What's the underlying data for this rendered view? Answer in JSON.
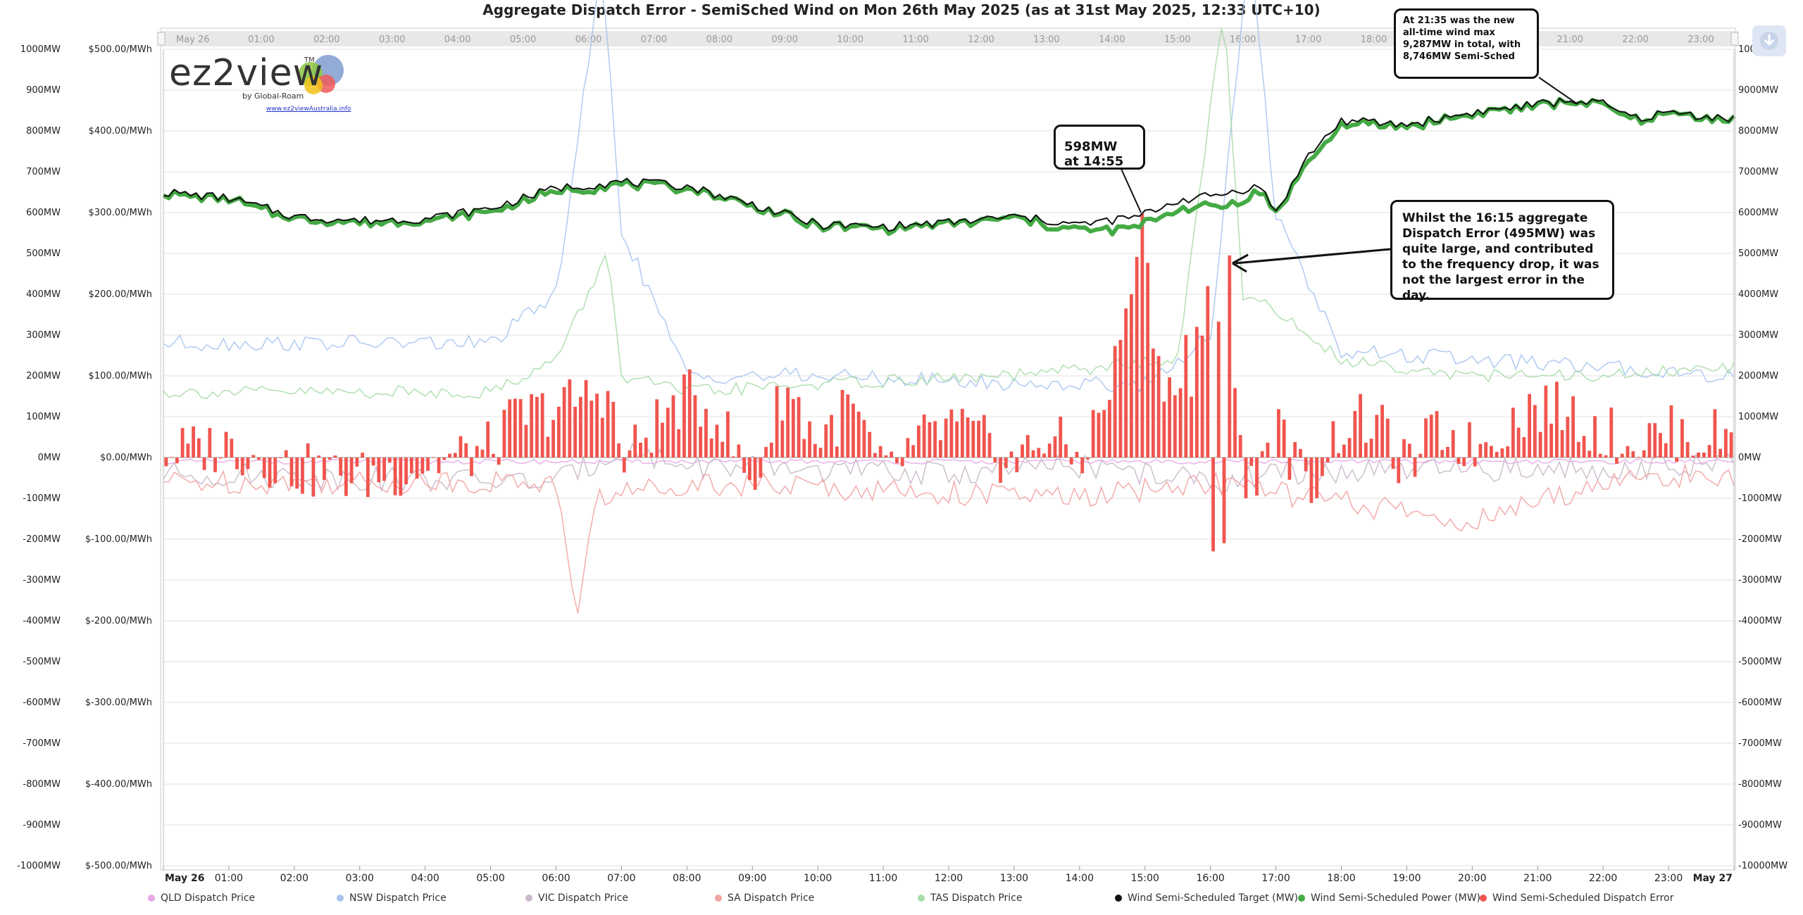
{
  "title": "Aggregate Dispatch Error - SemiSched Wind on Mon 26th May 2025 (as at 31st May 2025, 12:33 UTC+10)",
  "logo": {
    "text": "ez2view",
    "tm": "TM",
    "by": "by Global-Roam",
    "url": "www.ez2viewAustralia.info"
  },
  "annotations": {
    "max_wind": "At 21:35 was the new all-time wind max 9,287MW in total, with 8,746MW Semi-Sched",
    "peak_598": "598MW at 14:55",
    "note_1615": "Whilst the 16:15 aggregate Dispatch Error (495MW) was quite large, and contributed to the frequency drop, it was not the largest error in the day."
  },
  "colors": {
    "target": "#111111",
    "power": "#44aa44",
    "error": "#f0554e",
    "qld": "#e6a8e6",
    "nsw": "#a9c4ef",
    "vic": "#c9b8c9",
    "sa": "#f2a3a3",
    "tas": "#a9dba9"
  },
  "navigator_labels": [
    "May 26",
    "01:00",
    "02:00",
    "03:00",
    "04:00",
    "05:00",
    "06:00",
    "07:00",
    "08:00",
    "09:00",
    "10:00",
    "11:00",
    "12:00",
    "13:00",
    "14:00",
    "15:00",
    "16:00",
    "17:00",
    "18:00",
    "19:00",
    "20:00",
    "21:00",
    "22:00",
    "23:00"
  ],
  "chart_data": {
    "type": "line",
    "title": "Aggregate Dispatch Error - SemiSched Wind on Mon 26th May 2025 (as at 31st May 2025, 12:33 UTC+10)",
    "x_ticks": [
      "May 26",
      "01:00",
      "02:00",
      "03:00",
      "04:00",
      "05:00",
      "06:00",
      "07:00",
      "08:00",
      "09:00",
      "10:00",
      "11:00",
      "12:00",
      "13:00",
      "14:00",
      "15:00",
      "16:00",
      "17:00",
      "18:00",
      "19:00",
      "20:00",
      "21:00",
      "22:00",
      "23:00",
      "May 27"
    ],
    "y_left_mw": {
      "ticks": [
        "1000MW",
        "900MW",
        "800MW",
        "700MW",
        "600MW",
        "500MW",
        "400MW",
        "300MW",
        "200MW",
        "100MW",
        "0MW",
        "-100MW",
        "-200MW",
        "-300MW",
        "-400MW",
        "-500MW",
        "-600MW",
        "-700MW",
        "-800MW",
        "-900MW",
        "-1000MW"
      ],
      "range": [
        -1000,
        1000
      ]
    },
    "y_price": {
      "ticks": [
        "$500.00/MWh",
        "$400.00/MWh",
        "$300.00/MWh",
        "$200.00/MWh",
        "$100.00/MWh",
        "$0.00/MWh",
        "$-100.00/MWh",
        "$-200.00/MWh",
        "$-300.00/MWh",
        "$-400.00/MWh",
        "$-500.00/MWh"
      ],
      "range": [
        -500,
        500
      ]
    },
    "y_right_mw": {
      "ticks": [
        "10000MW",
        "9000MW",
        "8000MW",
        "7000MW",
        "6000MW",
        "5000MW",
        "4000MW",
        "3000MW",
        "2000MW",
        "1000MW",
        "0MW",
        "-1000MW",
        "-2000MW",
        "-3000MW",
        "-4000MW",
        "-5000MW",
        "-6000MW",
        "-7000MW",
        "-8000MW",
        "-9000MW",
        "-10000MW"
      ],
      "range": [
        -10000,
        10000
      ]
    },
    "interval_minutes": 5,
    "target_anchors": [
      [
        0,
        6500
      ],
      [
        1,
        6350
      ],
      [
        2,
        5900
      ],
      [
        3,
        5800
      ],
      [
        4,
        5850
      ],
      [
        5,
        6100
      ],
      [
        6,
        6600
      ],
      [
        7,
        6750
      ],
      [
        8,
        6650
      ],
      [
        9,
        6200
      ],
      [
        10,
        5700
      ],
      [
        11,
        5650
      ],
      [
        12,
        5750
      ],
      [
        13,
        5900
      ],
      [
        14,
        5700
      ],
      [
        14.9,
        5900
      ],
      [
        15.5,
        6300
      ],
      [
        16,
        6400
      ],
      [
        16.75,
        6650
      ],
      [
        17,
        6000
      ],
      [
        17.5,
        7400
      ],
      [
        18,
        8250
      ],
      [
        19,
        8150
      ],
      [
        20,
        8450
      ],
      [
        21,
        8650
      ],
      [
        21.6,
        8750
      ],
      [
        22,
        8650
      ],
      [
        22.5,
        8300
      ],
      [
        23,
        8450
      ],
      [
        24,
        8300
      ]
    ],
    "power_offset_anchors": [
      [
        0,
        -30
      ],
      [
        6,
        -80
      ],
      [
        7,
        -60
      ],
      [
        9,
        -40
      ],
      [
        13,
        -30
      ],
      [
        14.8,
        -250
      ],
      [
        15.5,
        -200
      ],
      [
        16,
        -250
      ],
      [
        16.4,
        -300
      ],
      [
        17,
        0
      ],
      [
        17.5,
        -150
      ],
      [
        18,
        -100
      ],
      [
        19,
        -40
      ],
      [
        21,
        -40
      ],
      [
        24,
        -40
      ]
    ],
    "error_anchors": [
      [
        0,
        10
      ],
      [
        1,
        30
      ],
      [
        2,
        -30
      ],
      [
        3,
        -50
      ],
      [
        4,
        -20
      ],
      [
        5,
        20
      ],
      [
        5.4,
        100
      ],
      [
        6,
        120
      ],
      [
        6.8,
        170
      ],
      [
        7,
        -20
      ],
      [
        7.5,
        80
      ],
      [
        8,
        150
      ],
      [
        8.5,
        100
      ],
      [
        9,
        -80
      ],
      [
        9.5,
        180
      ],
      [
        10,
        40
      ],
      [
        10.5,
        130
      ],
      [
        11,
        -50
      ],
      [
        11.5,
        30
      ],
      [
        12,
        80
      ],
      [
        12.5,
        40
      ],
      [
        13,
        -20
      ],
      [
        13.5,
        60
      ],
      [
        14,
        -10
      ],
      [
        14.5,
        180
      ],
      [
        14.92,
        595
      ],
      [
        15.2,
        230
      ],
      [
        15.6,
        120
      ],
      [
        16,
        300
      ],
      [
        16.25,
        495
      ],
      [
        16.5,
        -100
      ],
      [
        17,
        80
      ],
      [
        17.5,
        -80
      ],
      [
        18,
        80
      ],
      [
        18.5,
        90
      ],
      [
        19,
        -30
      ],
      [
        19.5,
        70
      ],
      [
        20,
        20
      ],
      [
        20.5,
        80
      ],
      [
        21,
        130
      ],
      [
        21.5,
        110
      ],
      [
        22,
        60
      ],
      [
        22.5,
        40
      ],
      [
        23,
        60
      ],
      [
        23.5,
        50
      ],
      [
        24,
        60
      ]
    ],
    "error_amplitude": 70,
    "error_highlights": [
      [
        14.92,
        598
      ],
      [
        14.75,
        400
      ],
      [
        16.25,
        495
      ],
      [
        16.0,
        -230
      ],
      [
        16.17,
        -210
      ],
      [
        15.92,
        420
      ],
      [
        15.75,
        320
      ],
      [
        15.58,
        300
      ],
      [
        5.5,
        80
      ]
    ],
    "price_series": [
      {
        "name": "QLD Dispatch Price",
        "anchors": [
          [
            0,
            -5
          ],
          [
            24,
            -5
          ]
        ],
        "amplitude": 3
      },
      {
        "name": "NSW Dispatch Price",
        "anchors": [
          [
            0,
            140
          ],
          [
            5,
            140
          ],
          [
            6,
            200
          ],
          [
            6.7,
            600
          ],
          [
            7,
            280
          ],
          [
            8,
            100
          ],
          [
            10,
            100
          ],
          [
            13,
            90
          ],
          [
            15,
            90
          ],
          [
            16,
            150
          ],
          [
            16.6,
            620
          ],
          [
            17,
            300
          ],
          [
            18,
            130
          ],
          [
            20,
            120
          ],
          [
            22,
            110
          ],
          [
            24,
            100
          ]
        ],
        "amplitude": 10
      },
      {
        "name": "VIC Dispatch Price",
        "anchors": [
          [
            0,
            -20
          ],
          [
            6,
            -30
          ],
          [
            7,
            10
          ],
          [
            8,
            -10
          ],
          [
            12,
            -20
          ],
          [
            14,
            -10
          ],
          [
            16,
            -30
          ],
          [
            17,
            -20
          ],
          [
            24,
            -10
          ]
        ],
        "amplitude": 15
      },
      {
        "name": "SA Dispatch Price",
        "anchors": [
          [
            0,
            -30
          ],
          [
            6,
            -30
          ],
          [
            6.3,
            -200
          ],
          [
            6.6,
            -50
          ],
          [
            8,
            -30
          ],
          [
            14,
            -50
          ],
          [
            16,
            -30
          ],
          [
            20,
            -80
          ],
          [
            22,
            -30
          ],
          [
            24,
            -20
          ]
        ],
        "amplitude": 15
      },
      {
        "name": "TAS Dispatch Price",
        "anchors": [
          [
            0,
            80
          ],
          [
            5,
            80
          ],
          [
            6,
            120
          ],
          [
            6.8,
            250
          ],
          [
            7,
            100
          ],
          [
            8,
            80
          ],
          [
            10,
            90
          ],
          [
            13,
            100
          ],
          [
            15.5,
            120
          ],
          [
            16.2,
            550
          ],
          [
            16.5,
            200
          ],
          [
            17,
            180
          ],
          [
            18,
            120
          ],
          [
            20,
            100
          ],
          [
            22,
            100
          ],
          [
            24,
            110
          ]
        ],
        "amplitude": 8
      }
    ],
    "legend": [
      {
        "name": "QLD Dispatch Price",
        "color": "#e6a8e6"
      },
      {
        "name": "NSW Dispatch Price",
        "color": "#a9c4ef"
      },
      {
        "name": "VIC Dispatch Price",
        "color": "#c9b8c9"
      },
      {
        "name": "SA Dispatch Price",
        "color": "#f2a3a3"
      },
      {
        "name": "TAS Dispatch Price",
        "color": "#a9dba9"
      },
      {
        "name": "Wind Semi-Scheduled Target (MW)",
        "color": "#111111"
      },
      {
        "name": "Wind Semi-Scheduled Power (MW)",
        "color": "#44aa44"
      },
      {
        "name": "Wind Semi-Scheduled Dispatch Error",
        "color": "#f0554e"
      }
    ]
  }
}
